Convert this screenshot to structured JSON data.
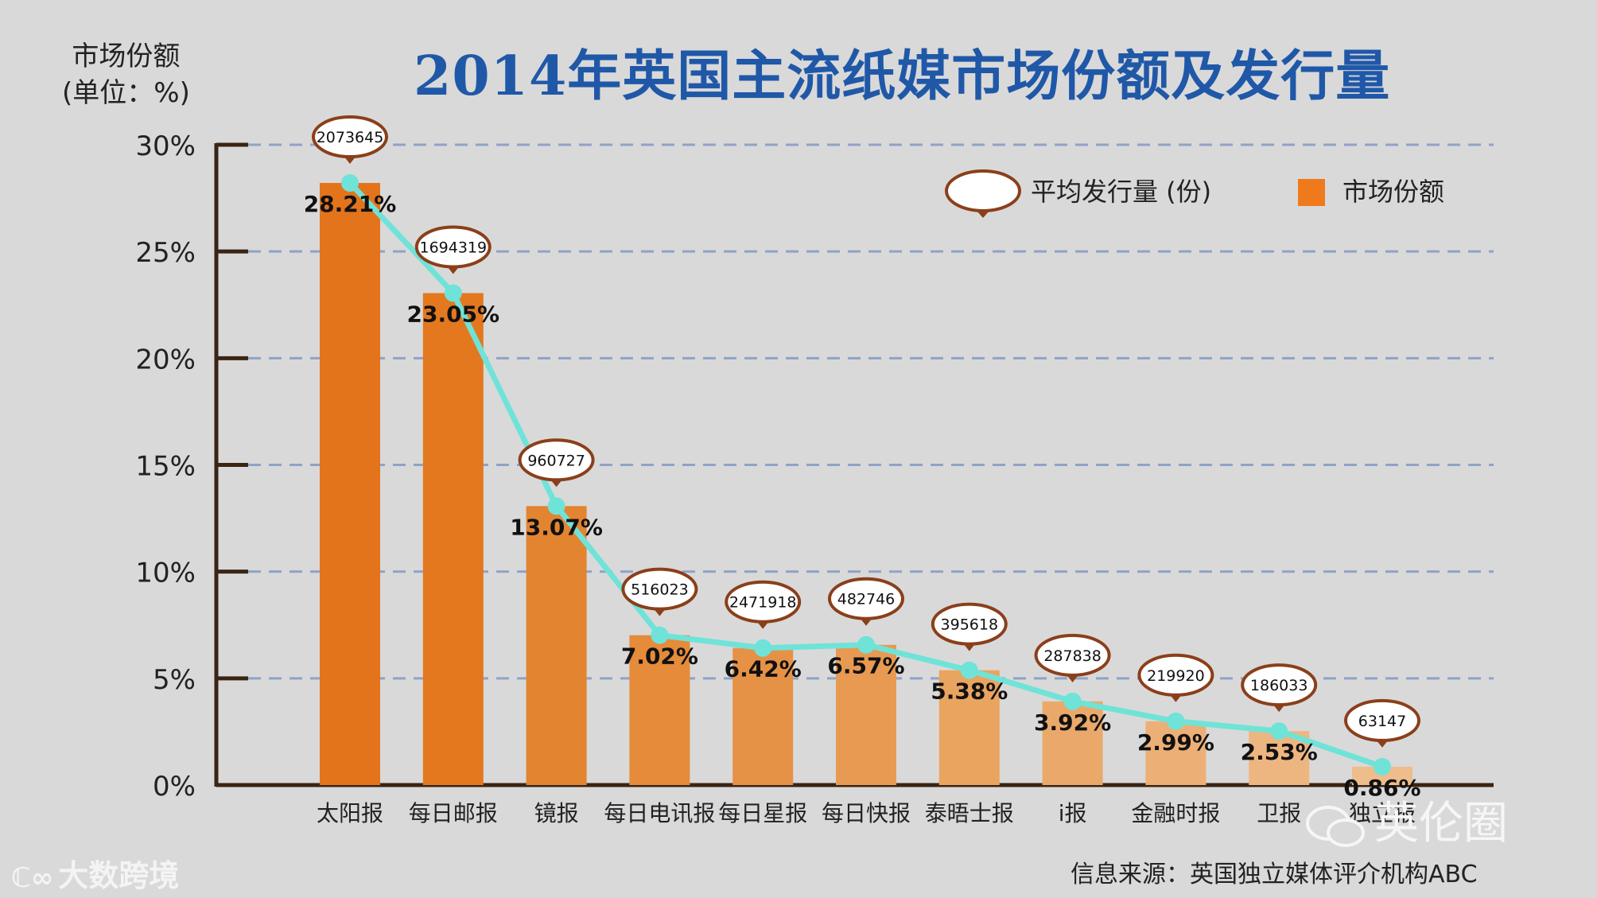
{
  "chart_data": {
    "type": "bar",
    "title": "2014年英国主流纸媒市场份额及发行量",
    "ylabel_line1": "市场份额",
    "ylabel_line2": "(单位：%)",
    "ylim": [
      0,
      30
    ],
    "yticks": [
      "0%",
      "5%",
      "10%",
      "15%",
      "20%",
      "25%",
      "30%"
    ],
    "categories": [
      "太阳报",
      "每日邮报",
      "镜报",
      "每日电讯报",
      "每日星报",
      "每日快报",
      "泰晤士报",
      "i报",
      "金融时报",
      "卫报",
      "独立报"
    ],
    "series": [
      {
        "name": "市场份额",
        "type": "bar",
        "values": [
          28.21,
          23.05,
          13.07,
          7.02,
          6.42,
          6.57,
          5.38,
          3.92,
          2.99,
          2.53,
          0.86
        ],
        "labels": [
          "28.21%",
          "23.05%",
          "13.07%",
          "7.02%",
          "6.42%",
          "6.57%",
          "5.38%",
          "3.92%",
          "2.99%",
          "2.53%",
          "0.86%"
        ]
      },
      {
        "name": "平均发行量 (份)",
        "type": "line",
        "values": [
          2073645,
          1694319,
          960727,
          516023,
          2471918,
          482746,
          395618,
          287838,
          219920,
          186033,
          63147
        ],
        "labels": [
          "2073645",
          "1694319",
          "960727",
          "516023",
          "2471918",
          "482746",
          "395618",
          "287838",
          "219920",
          "186033",
          "63147"
        ]
      }
    ],
    "legend": {
      "position": "top-right",
      "line_label": "平均发行量 (份)",
      "bar_label": "市场份额"
    },
    "grid": true
  },
  "source": "信息来源：英国独立媒体评介机构ABC",
  "watermark_left": "大数跨境",
  "watermark_right": "英伦圈",
  "colors": {
    "title": "#2058a8",
    "line": "#6fe3d8",
    "grid": "#8fa3c8",
    "bubble_border": "#8a3f1a",
    "bars": [
      "#e3741c",
      "#e3781f",
      "#e38430",
      "#e58b3a",
      "#e69246",
      "#e89a52",
      "#e9a45f",
      "#eaa96a",
      "#ecb076",
      "#edb681",
      "#efbc8c"
    ]
  }
}
